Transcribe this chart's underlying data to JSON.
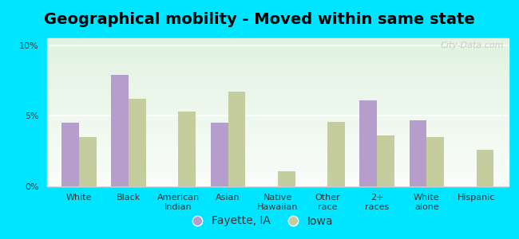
{
  "title": "Geographical mobility - Moved within same state",
  "categories": [
    "White",
    "Black",
    "American\nIndian",
    "Asian",
    "Native\nHawaiian",
    "Other\nrace",
    "2+\nraces",
    "White\nalone",
    "Hispanic"
  ],
  "fayette_values": [
    4.5,
    7.9,
    0,
    4.5,
    0,
    0,
    6.1,
    4.7,
    0
  ],
  "iowa_values": [
    3.5,
    6.2,
    5.3,
    6.7,
    1.1,
    4.6,
    3.6,
    3.5,
    2.6
  ],
  "fayette_color": "#b59dcc",
  "iowa_color": "#c5cc9d",
  "background_outer": "#00e5ff",
  "ylim": [
    0,
    10.5
  ],
  "yticks": [
    0,
    5,
    10
  ],
  "yticklabels": [
    "0%",
    "5%",
    "10%"
  ],
  "bar_width": 0.35,
  "legend_label_fayette": "Fayette, IA",
  "legend_label_iowa": "Iowa",
  "title_fontsize": 14,
  "tick_fontsize": 8,
  "legend_fontsize": 10
}
